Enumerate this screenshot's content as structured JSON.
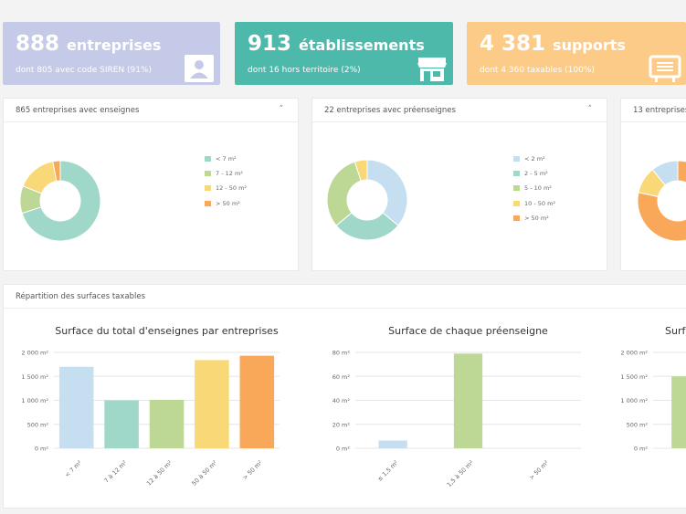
{
  "stats": [
    {
      "number": "888",
      "unit": "entreprises",
      "sub": "dont 805 avec code SIREN (91%)",
      "color": "#c4cae8",
      "icon": "person-icon"
    },
    {
      "number": "913",
      "unit": "établissements",
      "sub": "dont 16 hors territoire (2%)",
      "color": "#4db9ab",
      "icon": "store-icon"
    },
    {
      "number": "4 381",
      "unit": "supports",
      "sub": "dont 4 360 taxables (100%)",
      "color": "#fdcb88",
      "icon": "billboard-icon"
    }
  ],
  "donut_cards": [
    {
      "title": "865 entreprises avec enseignes",
      "chevron": "˄"
    },
    {
      "title": "22 entreprises avec préenseignes",
      "chevron": "˄"
    },
    {
      "title": "13 entreprises"
    }
  ],
  "surfaces_card": {
    "title": "Répartition des surfaces taxables"
  },
  "chart_data": [
    {
      "type": "pie",
      "categories": [
        "< 7 m²",
        "7 - 12 m²",
        "12 - 50 m²",
        "> 50 m²"
      ],
      "values": [
        70,
        11,
        16,
        3
      ],
      "colors": [
        "#9fd8c8",
        "#bdd895",
        "#f9d878",
        "#f9a85a"
      ],
      "legend_position": "right"
    },
    {
      "type": "pie",
      "categories": [
        "< 2 m²",
        "2 - 5 m²",
        "5 - 10 m²",
        "10 - 50 m²",
        "> 50 m²"
      ],
      "values": [
        36,
        28,
        31,
        5,
        0
      ],
      "colors": [
        "#c5dff0",
        "#9fd8c8",
        "#bdd895",
        "#f9d878",
        "#f9a85a"
      ],
      "legend_position": "right"
    },
    {
      "type": "pie",
      "values": [
        58,
        8,
        8
      ],
      "colors": [
        "#f9a85a",
        "#f9d878",
        "#c5dff0"
      ]
    },
    {
      "type": "bar",
      "title": "Surface du total d'enseignes par entreprises",
      "categories": [
        "< 7 m²",
        "7 à 12 m²",
        "12 à 50 m²",
        "50 à 50 m²",
        "> 50 m²"
      ],
      "values": [
        1700,
        1000,
        1010,
        1840,
        1930
      ],
      "colors": [
        "#c5dff0",
        "#9fd8c8",
        "#bdd895",
        "#f9d878",
        "#f9a85a"
      ],
      "yticks": [
        "0 m²",
        "500 m²",
        "1 000 m²",
        "1 500 m²",
        "2 000 m²"
      ],
      "ylim": [
        0,
        2000
      ]
    },
    {
      "type": "bar",
      "title": "Surface de chaque préenseigne",
      "categories": [
        "≤ 1,5 m²",
        "1,5 à 50 m²",
        "> 50 m²"
      ],
      "values": [
        6.5,
        79,
        0
      ],
      "colors": [
        "#c5dff0",
        "#bdd895",
        "#f9a85a"
      ],
      "yticks": [
        "0 m²",
        "20 m²",
        "40 m²",
        "60 m²",
        "80 m²"
      ],
      "ylim": [
        0,
        80
      ]
    },
    {
      "type": "bar",
      "title": "Surfa",
      "categories": [
        ""
      ],
      "values": [
        1500
      ],
      "colors": [
        "#bdd895"
      ],
      "yticks": [
        "0 m²",
        "500 m²",
        "1 000 m²",
        "1 500 m²",
        "2 000 m²"
      ],
      "ylim": [
        0,
        2000
      ]
    }
  ]
}
